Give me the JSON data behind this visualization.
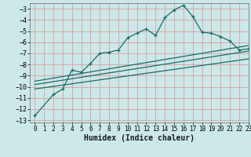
{
  "xlabel": "Humidex (Indice chaleur)",
  "xlim": [
    -0.5,
    23
  ],
  "ylim": [
    -13.2,
    -2.5
  ],
  "bg_color": "#cce8e8",
  "grid_color": "#d8a0a0",
  "line_color": "#1a6b6b",
  "curve1_x": [
    0,
    2,
    3,
    4,
    5,
    6,
    7,
    8,
    9,
    10,
    11,
    12,
    13,
    14,
    15,
    16,
    17,
    18,
    19,
    20,
    21,
    22,
    23
  ],
  "curve1_y": [
    -12.6,
    -10.7,
    -10.2,
    -8.5,
    -8.7,
    -7.9,
    -7.0,
    -6.9,
    -6.7,
    -5.6,
    -5.2,
    -4.8,
    -5.4,
    -3.8,
    -3.1,
    -2.7,
    -3.7,
    -5.1,
    -5.2,
    -5.5,
    -5.9,
    -6.7,
    -6.6
  ],
  "line2_x": [
    0,
    23
  ],
  "line2_y": [
    -9.5,
    -6.3
  ],
  "line3_x": [
    0,
    23
  ],
  "line3_y": [
    -9.8,
    -6.8
  ],
  "line4_x": [
    0,
    23
  ],
  "line4_y": [
    -10.2,
    -7.5
  ],
  "yticks": [
    -13,
    -12,
    -11,
    -10,
    -9,
    -8,
    -7,
    -6,
    -5,
    -4,
    -3
  ],
  "xticks": [
    0,
    1,
    2,
    3,
    4,
    5,
    6,
    7,
    8,
    9,
    10,
    11,
    12,
    13,
    14,
    15,
    16,
    17,
    18,
    19,
    20,
    21,
    22,
    23
  ]
}
